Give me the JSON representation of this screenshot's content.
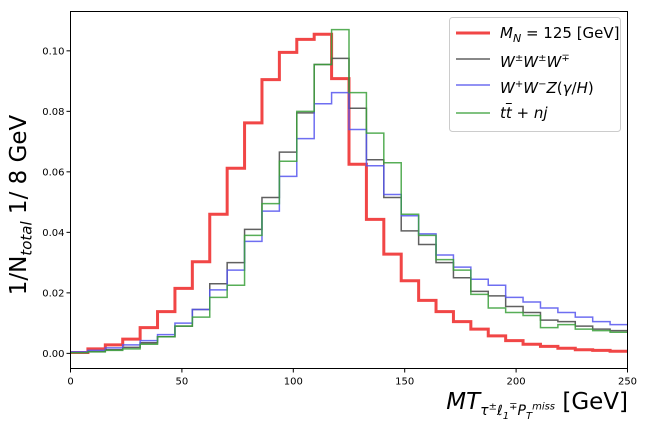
{
  "chart_data": {
    "type": "histogram",
    "xlabel": "MT_{τ^±ℓ_1^∓P_T^miss} [GeV]",
    "ylabel": "1/N_total  1/ 8 GeV",
    "xlim": [
      0,
      250
    ],
    "ylim": [
      -0.005,
      0.113
    ],
    "grid": false,
    "legend_position": "top-right",
    "x_ticks": [
      0,
      50,
      100,
      150,
      200,
      250
    ],
    "y_ticks": [
      0.0,
      0.02,
      0.04,
      0.06,
      0.08,
      0.1
    ],
    "y_tick_labels": [
      "0.00",
      "0.02",
      "0.04",
      "0.06",
      "0.08",
      "0.10"
    ],
    "bin_width": 7.8125,
    "bin_edges_start": 0,
    "series": [
      {
        "name": "M_N = 125 [GeV]",
        "label_main": "M",
        "label_sub": "N",
        "label_rest": " = 125 [GeV]",
        "color": "#f03c3c",
        "values": [
          0.0003,
          0.0015,
          0.0028,
          0.0047,
          0.0085,
          0.0138,
          0.0215,
          0.0303,
          0.046,
          0.0612,
          0.0762,
          0.0905,
          0.0995,
          0.1038,
          0.1055,
          0.0908,
          0.0625,
          0.0443,
          0.0328,
          0.024,
          0.0175,
          0.0138,
          0.0105,
          0.008,
          0.0058,
          0.0042,
          0.003,
          0.0023,
          0.0017,
          0.0012,
          0.001,
          0.0007
        ]
      },
      {
        "name": "W^±W^±W^∓",
        "color": "#444444",
        "values": [
          0.0003,
          0.0006,
          0.0012,
          0.002,
          0.0035,
          0.0055,
          0.009,
          0.0145,
          0.023,
          0.03,
          0.041,
          0.0515,
          0.0665,
          0.0795,
          0.0955,
          0.0975,
          0.081,
          0.064,
          0.0515,
          0.0405,
          0.036,
          0.03,
          0.025,
          0.0205,
          0.019,
          0.0155,
          0.0135,
          0.011,
          0.0105,
          0.009,
          0.008,
          0.0075
        ]
      },
      {
        "name": "W^+W^-Z(γ/H)",
        "color": "#5555ee",
        "values": [
          0.0005,
          0.001,
          0.0018,
          0.0028,
          0.0042,
          0.0062,
          0.01,
          0.0145,
          0.021,
          0.0275,
          0.037,
          0.047,
          0.0585,
          0.071,
          0.0825,
          0.0862,
          0.074,
          0.062,
          0.0525,
          0.0455,
          0.0395,
          0.0325,
          0.0285,
          0.0245,
          0.0225,
          0.0185,
          0.017,
          0.015,
          0.0135,
          0.012,
          0.0105,
          0.0095
        ]
      },
      {
        "name": "tt̄ + nj",
        "color": "#3aa03a",
        "values": [
          0.0002,
          0.0005,
          0.001,
          0.0015,
          0.003,
          0.0055,
          0.009,
          0.012,
          0.0185,
          0.0225,
          0.039,
          0.0495,
          0.0635,
          0.08,
          0.0955,
          0.107,
          0.0862,
          0.0728,
          0.063,
          0.046,
          0.039,
          0.031,
          0.0275,
          0.0195,
          0.015,
          0.0135,
          0.0125,
          0.0085,
          0.0095,
          0.008,
          0.0075,
          0.007
        ]
      }
    ]
  },
  "legend": {
    "entry_1": "M",
    "entry_1_sub": "N",
    "entry_1_rest": " = 125 [GeV]",
    "entry_2": "W",
    "entry_3": "W",
    "entry_4": "t"
  },
  "axis": {
    "ylabel_prefix": "1/N",
    "ylabel_sub": "total",
    "ylabel_suffix": "  1/ 8 GeV",
    "xlabel_prefix": "MT",
    "xlabel_unit": " [GeV]"
  }
}
